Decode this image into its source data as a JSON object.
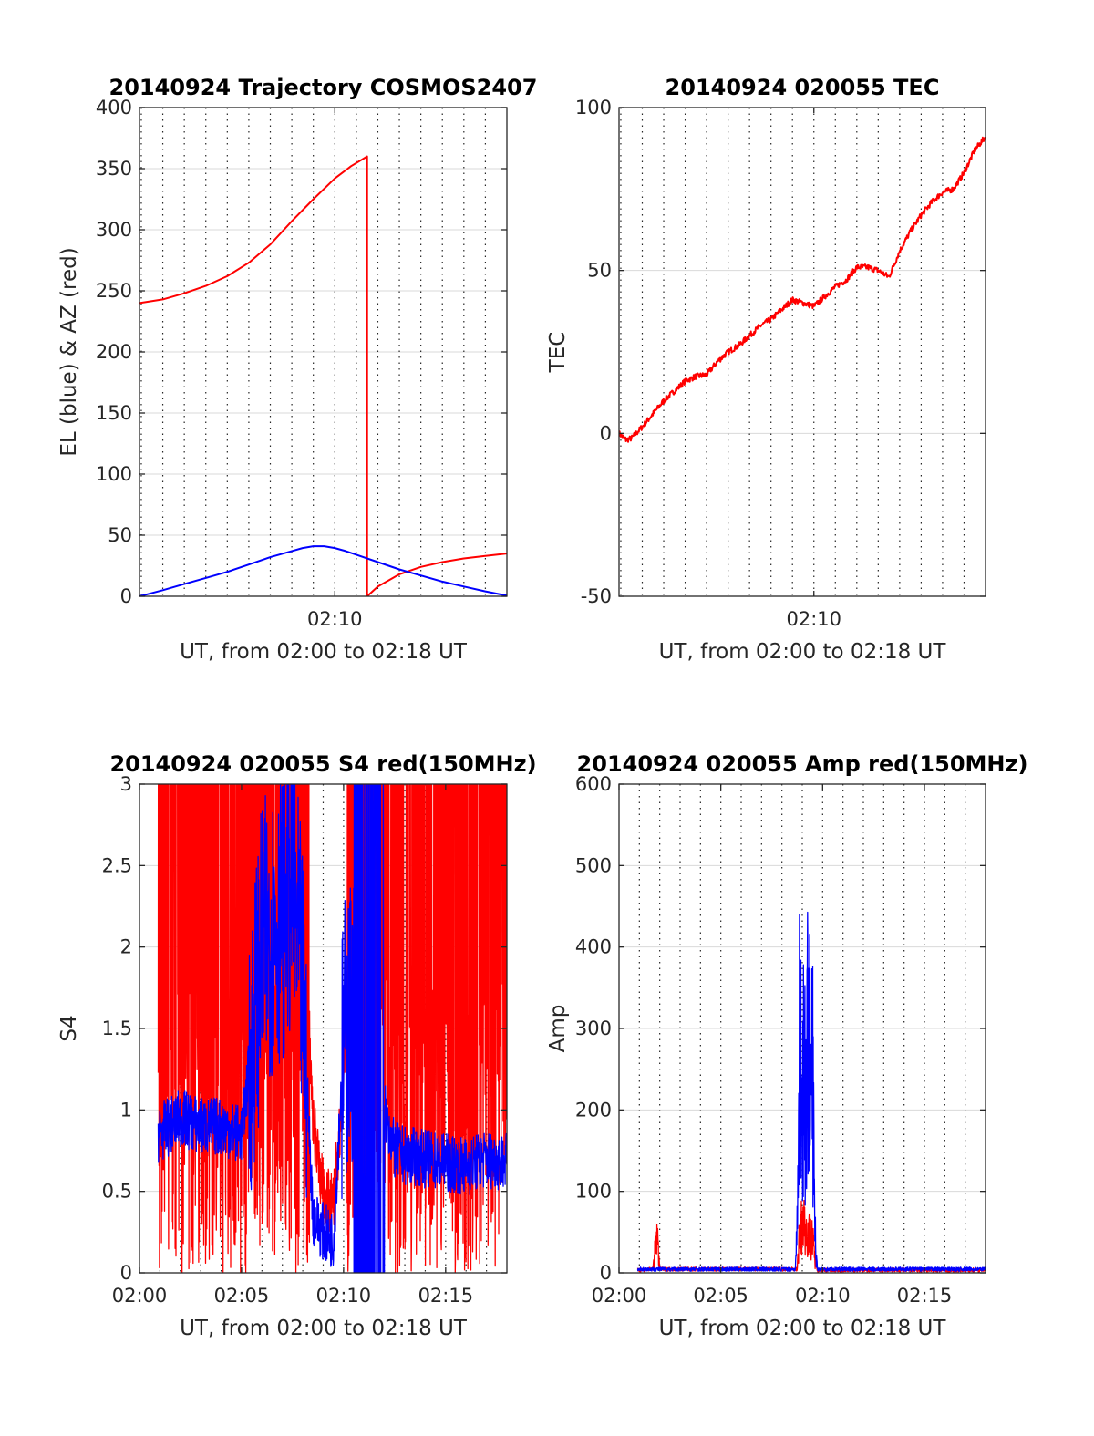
{
  "chart_data": [
    {
      "type": "line",
      "title": "20140924 Trajectory COSMOS2407",
      "xlabel": "UT, from 02:00 to 02:18 UT",
      "ylabel": "EL (blue) & AZ (red)",
      "xlim": [
        "02:00:55",
        "02:18:00"
      ],
      "ylim": [
        0,
        400
      ],
      "yticks": [
        0,
        50,
        100,
        150,
        200,
        250,
        300,
        350,
        400
      ],
      "xticks": [
        {
          "t": "02:10",
          "label": "02:10"
        }
      ],
      "grid": true,
      "series": [
        {
          "color": "#ff0000",
          "points": [
            [
              "02:00:55",
              240
            ],
            [
              "02:02:00",
              243
            ],
            [
              "02:03:00",
              248
            ],
            [
              "02:04:00",
              254
            ],
            [
              "02:05:00",
              262
            ],
            [
              "02:06:00",
              273
            ],
            [
              "02:07:00",
              288
            ],
            [
              "02:08:00",
              307
            ],
            [
              "02:09:00",
              325
            ],
            [
              "02:10:00",
              342
            ],
            [
              "02:10:45",
              352
            ],
            [
              "02:11:30",
              360
            ],
            [
              "02:11:30",
              0
            ],
            [
              "02:12:00",
              8
            ],
            [
              "02:13:00",
              18
            ],
            [
              "02:14:00",
              24
            ],
            [
              "02:15:00",
              28
            ],
            [
              "02:16:00",
              31
            ],
            [
              "02:17:00",
              33
            ],
            [
              "02:18:00",
              35
            ]
          ]
        },
        {
          "color": "#0000ff",
          "points": [
            [
              "02:00:55",
              0
            ],
            [
              "02:02:00",
              5
            ],
            [
              "02:03:00",
              10
            ],
            [
              "02:04:00",
              15
            ],
            [
              "02:05:00",
              20
            ],
            [
              "02:06:00",
              26
            ],
            [
              "02:07:00",
              32
            ],
            [
              "02:08:00",
              37
            ],
            [
              "02:08:30",
              39.5
            ],
            [
              "02:09:00",
              41
            ],
            [
              "02:09:30",
              41
            ],
            [
              "02:10:00",
              39.5
            ],
            [
              "02:10:30",
              37
            ],
            [
              "02:11:00",
              34
            ],
            [
              "02:12:00",
              28
            ],
            [
              "02:13:00",
              22
            ],
            [
              "02:14:00",
              17
            ],
            [
              "02:15:00",
              12
            ],
            [
              "02:16:00",
              8
            ],
            [
              "02:17:00",
              4
            ],
            [
              "02:18:00",
              0.5
            ]
          ]
        }
      ]
    },
    {
      "type": "line",
      "title": "20140924 020055 TEC",
      "xlabel": "UT, from 02:00 to 02:18 UT",
      "ylabel": "TEC",
      "xlim": [
        "02:00:55",
        "02:18:00"
      ],
      "ylim": [
        -50,
        100
      ],
      "yticks": [
        -50,
        0,
        50,
        100
      ],
      "xticks": [
        {
          "t": "02:10",
          "label": "02:10"
        }
      ],
      "grid": true,
      "series": [
        {
          "color": "#ff0000",
          "noise": 0.9,
          "points": [
            [
              "02:00:55",
              0
            ],
            [
              "02:01:15",
              -2
            ],
            [
              "02:01:30",
              -1.5
            ],
            [
              "02:02:00",
              2
            ],
            [
              "02:02:30",
              6
            ],
            [
              "02:03:00",
              10
            ],
            [
              "02:03:30",
              13
            ],
            [
              "02:04:00",
              16
            ],
            [
              "02:04:30",
              17.5
            ],
            [
              "02:05:00",
              18
            ],
            [
              "02:05:30",
              22
            ],
            [
              "02:06:00",
              25
            ],
            [
              "02:06:30",
              27
            ],
            [
              "02:07:00",
              30
            ],
            [
              "02:07:30",
              33
            ],
            [
              "02:08:00",
              35
            ],
            [
              "02:08:30",
              38
            ],
            [
              "02:09:00",
              41
            ],
            [
              "02:09:30",
              40
            ],
            [
              "02:10:00",
              39
            ],
            [
              "02:10:30",
              42
            ],
            [
              "02:11:00",
              45
            ],
            [
              "02:11:30",
              47
            ],
            [
              "02:12:00",
              51
            ],
            [
              "02:12:30",
              51
            ],
            [
              "02:13:00",
              50
            ],
            [
              "02:13:30",
              48
            ],
            [
              "02:14:00",
              56
            ],
            [
              "02:14:30",
              62
            ],
            [
              "02:15:00",
              67
            ],
            [
              "02:15:30",
              71
            ],
            [
              "02:16:00",
              74
            ],
            [
              "02:16:30",
              75
            ],
            [
              "02:17:00",
              80
            ],
            [
              "02:17:30",
              87
            ],
            [
              "02:18:00",
              91
            ]
          ]
        }
      ]
    },
    {
      "type": "line",
      "title": "20140924 020055 S4 red(150MHz)",
      "xlabel": "UT, from 02:00 to 02:18 UT",
      "ylabel": "S4",
      "xlim": [
        "02:00:00",
        "02:18:00"
      ],
      "ylim": [
        0,
        3
      ],
      "yticks": [
        0,
        0.5,
        1,
        1.5,
        2,
        2.5,
        3
      ],
      "xticks": [
        {
          "t": "02:00",
          "label": "02:00"
        },
        {
          "t": "02:05",
          "label": "02:05"
        },
        {
          "t": "02:10",
          "label": "02:10"
        },
        {
          "t": "02:15",
          "label": "02:15"
        }
      ],
      "grid": true,
      "series": [
        {
          "color": "#ff0000",
          "style": "spiky",
          "points": [
            [
              "02:00:55",
              2.5
            ],
            [
              "02:02:00",
              3
            ],
            [
              "02:03:00",
              2.8
            ],
            [
              "02:05:00",
              3
            ],
            [
              "02:07:00",
              3
            ],
            [
              "02:08:00",
              2.5
            ],
            [
              "02:08:30",
              0.9
            ],
            [
              "02:09:00",
              0.5
            ],
            [
              "02:09:30",
              0.4
            ],
            [
              "02:10:00",
              1.2
            ],
            [
              "02:10:30",
              3
            ],
            [
              "02:12:00",
              3
            ],
            [
              "02:13:00",
              3
            ],
            [
              "02:15:00",
              3
            ],
            [
              "02:18:00",
              3
            ]
          ]
        },
        {
          "color": "#0000ff",
          "style": "band",
          "points": [
            [
              "02:00:55",
              0.85
            ],
            [
              "02:01:30",
              0.9
            ],
            [
              "02:02:00",
              0.95
            ],
            [
              "02:03:00",
              0.9
            ],
            [
              "02:04:00",
              0.9
            ],
            [
              "02:05:00",
              0.85
            ],
            [
              "02:05:30",
              1.4
            ],
            [
              "02:06:00",
              2.0
            ],
            [
              "02:06:30",
              2.1
            ],
            [
              "02:07:00",
              2.2
            ],
            [
              "02:07:30",
              2.4
            ],
            [
              "02:08:00",
              1.7
            ],
            [
              "02:08:30",
              0.35
            ],
            [
              "02:09:00",
              0.25
            ],
            [
              "02:09:30",
              0.2
            ],
            [
              "02:10:00",
              1.4
            ],
            [
              "02:10:30",
              1.6
            ],
            [
              "02:11:00",
              1.4
            ],
            [
              "02:11:30",
              1.3
            ],
            [
              "02:12:00",
              1.0
            ],
            [
              "02:12:30",
              0.75
            ],
            [
              "02:13:00",
              0.72
            ],
            [
              "02:14:00",
              0.7
            ],
            [
              "02:15:00",
              0.68
            ],
            [
              "02:16:00",
              0.65
            ],
            [
              "02:17:00",
              0.7
            ],
            [
              "02:18:00",
              0.68
            ]
          ]
        }
      ]
    },
    {
      "type": "line",
      "title": "20140924 020055 Amp red(150MHz)",
      "xlabel": "UT, from 02:00 to 02:18 UT",
      "ylabel": "Amp",
      "xlim": [
        "02:00:00",
        "02:18:00"
      ],
      "ylim": [
        0,
        600
      ],
      "yticks": [
        0,
        100,
        200,
        300,
        400,
        500,
        600
      ],
      "xticks": [
        {
          "t": "02:00",
          "label": "02:00"
        },
        {
          "t": "02:05",
          "label": "02:05"
        },
        {
          "t": "02:10",
          "label": "02:10"
        },
        {
          "t": "02:15",
          "label": "02:15"
        }
      ],
      "grid": true,
      "series": [
        {
          "color": "#ff0000",
          "style": "spike",
          "points": [
            [
              "02:00:55",
              2
            ],
            [
              "02:01:40",
              3
            ],
            [
              "02:01:45",
              30
            ],
            [
              "02:01:50",
              80
            ],
            [
              "02:01:55",
              40
            ],
            [
              "02:02:00",
              3
            ],
            [
              "02:08:45",
              3
            ],
            [
              "02:08:50",
              50
            ],
            [
              "02:09:00",
              90
            ],
            [
              "02:09:15",
              70
            ],
            [
              "02:09:30",
              60
            ],
            [
              "02:09:40",
              10
            ],
            [
              "02:09:45",
              2
            ],
            [
              "02:18:00",
              2
            ]
          ]
        },
        {
          "color": "#0000ff",
          "style": "spike",
          "points": [
            [
              "02:00:55",
              3
            ],
            [
              "02:08:40",
              3
            ],
            [
              "02:08:48",
              150
            ],
            [
              "02:08:52",
              440
            ],
            [
              "02:09:00",
              300
            ],
            [
              "02:09:05",
              420
            ],
            [
              "02:09:10",
              250
            ],
            [
              "02:09:15",
              380
            ],
            [
              "02:09:18",
              470
            ],
            [
              "02:09:25",
              280
            ],
            [
              "02:09:30",
              400
            ],
            [
              "02:09:35",
              150
            ],
            [
              "02:09:40",
              30
            ],
            [
              "02:09:45",
              3
            ],
            [
              "02:18:00",
              3
            ]
          ]
        }
      ]
    }
  ]
}
